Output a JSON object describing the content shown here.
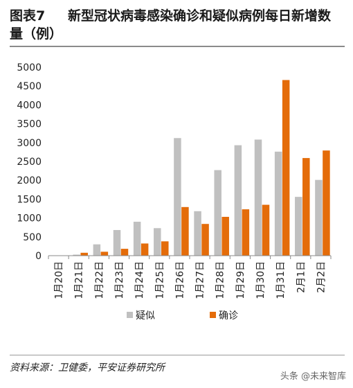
{
  "header": {
    "figure_no": "图表7",
    "title_line1": "新型冠状病毒感染确诊和疑似病例每日新增数",
    "title_line2": "量（例）"
  },
  "chart_data": {
    "type": "bar",
    "categories": [
      "1月20日",
      "1月21日",
      "1月22日",
      "1月23日",
      "1月24日",
      "1月25日",
      "1月26日",
      "1月27日",
      "1月28日",
      "1月29日",
      "1月30日",
      "1月31日",
      "2月1日",
      "2月2日"
    ],
    "series": [
      {
        "name": "疑似",
        "color": "#c0c0c0",
        "values": [
          0,
          27,
          300,
          680,
          900,
          730,
          3120,
          1180,
          2270,
          2930,
          3080,
          2760,
          1560,
          2010
        ]
      },
      {
        "name": "确诊",
        "color": "#e46c0a",
        "values": [
          0,
          77,
          104,
          182,
          323,
          380,
          1290,
          842,
          1030,
          1230,
          1350,
          4660,
          2590,
          2790
        ]
      }
    ],
    "ylim": [
      0,
      5000
    ],
    "yticks": [
      0,
      500,
      1000,
      1500,
      2000,
      2500,
      3000,
      3500,
      4000,
      4500,
      5000
    ],
    "legend_position": "bottom-center",
    "grid": false
  },
  "footer": {
    "source": "资料来源：卫健委，平安证券研究所",
    "watermark": "头条 @未来智库"
  }
}
